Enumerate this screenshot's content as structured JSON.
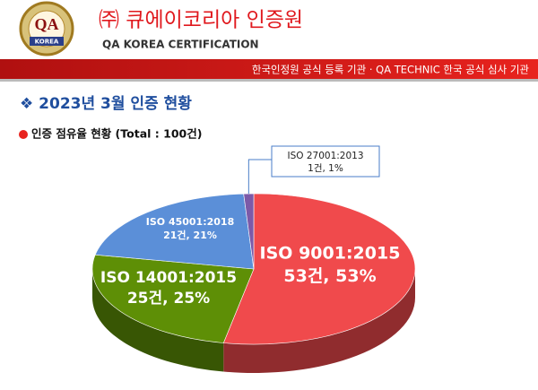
{
  "header": {
    "logo_text": "QA",
    "logo_subtext": "KOREA",
    "title": "㈜ 큐에이코리아 인증원",
    "subtitle": "QA KOREA CERTIFICATION",
    "banner": "한국인정원 공식 등록 기관 · QA TECHNIC 한국 공식 심사 기관"
  },
  "heading": "❖ 2023년 3월 인증 현황",
  "subheading": "인증 점유율 현황 (Total : 100건)",
  "chart_data": {
    "type": "pie",
    "categories": [
      "ISO 9001:2015",
      "ISO 14001:2015",
      "ISO 45001:2018",
      "ISO 27001:2013"
    ],
    "values": [
      53,
      25,
      21,
      1
    ],
    "value_labels": [
      "53건, 53%",
      "25건, 25%",
      "21건, 21%",
      "1건, 1%"
    ],
    "colors": [
      "#f04a4c",
      "#5e8f06",
      "#5b8fd8",
      "#7c5aa8"
    ]
  }
}
